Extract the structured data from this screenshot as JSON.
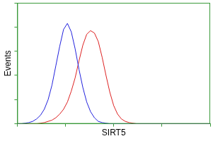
{
  "chart_data": {
    "type": "line",
    "x_label": "SIRT5",
    "y_label": "Events",
    "x": [
      0,
      2,
      4,
      6,
      8,
      10,
      12,
      14,
      16,
      18,
      20,
      22,
      24,
      26,
      28,
      30,
      32,
      34,
      36,
      38,
      40,
      42,
      44,
      46,
      48,
      50,
      52,
      54,
      56,
      58,
      60,
      62,
      64,
      66,
      68,
      70,
      72,
      74,
      76,
      78,
      80,
      82,
      84,
      86,
      88,
      90,
      92,
      94,
      96,
      98,
      100
    ],
    "series": [
      {
        "color": "#2222dd",
        "values": [
          0,
          0,
          0.5,
          1,
          2,
          4,
          7,
          12,
          20,
          32,
          48,
          64,
          78,
          83,
          76,
          62,
          45,
          30,
          18,
          10,
          5,
          2,
          1,
          0.5,
          0,
          0,
          0,
          0,
          0,
          0,
          0,
          0,
          0,
          0,
          0,
          0,
          0,
          0,
          0,
          0,
          0,
          0,
          0,
          0,
          0,
          0,
          0,
          0,
          0,
          0,
          0
        ]
      },
      {
        "color": "#dd2222",
        "values": [
          0,
          0,
          0,
          0,
          0,
          0,
          0.5,
          1,
          2,
          3,
          5,
          8,
          12,
          18,
          27,
          38,
          52,
          65,
          74,
          77,
          75,
          68,
          55,
          40,
          26,
          15,
          8,
          4,
          2,
          1,
          0.5,
          0,
          0,
          0,
          0,
          0,
          0,
          0,
          0,
          0,
          0,
          0,
          0,
          0,
          0,
          0,
          0,
          0,
          0,
          0,
          0
        ]
      }
    ],
    "xlim": [
      0,
      100
    ],
    "ylim": [
      0,
      100
    ],
    "xticks": [
      0,
      25,
      50,
      75,
      100
    ],
    "yticks": [
      0,
      20,
      40,
      60,
      80,
      100
    ],
    "grid": false,
    "tick_labels": false
  }
}
